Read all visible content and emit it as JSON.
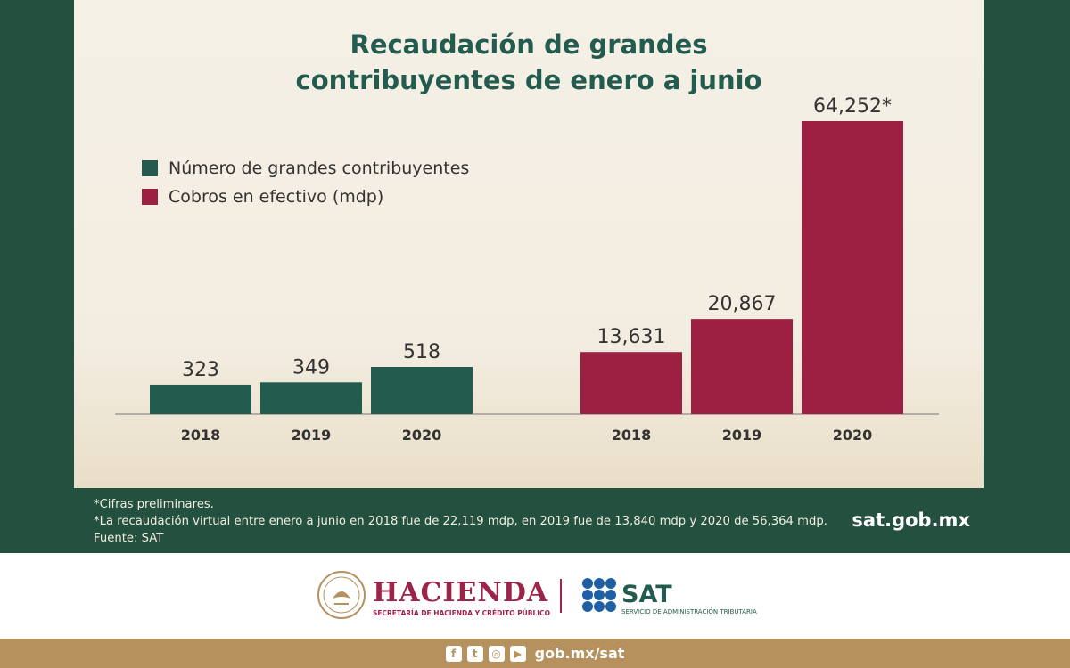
{
  "chart_data": [
    {
      "type": "bar",
      "title": "Recaudación de grandes contribuyentes de enero a junio",
      "series_name": "Número de grandes contribuyentes",
      "categories": [
        "2018",
        "2019",
        "2020"
      ],
      "values": [
        323,
        349,
        518
      ],
      "value_labels": [
        "323",
        "349",
        "518"
      ],
      "color": "#235b4e"
    },
    {
      "type": "bar",
      "series_name": "Cobros en efectivo (mdp)",
      "categories": [
        "2018",
        "2019",
        "2020"
      ],
      "values": [
        13631,
        20867,
        64252
      ],
      "value_labels": [
        "13,631",
        "20,867",
        "64,252*"
      ],
      "color": "#9d2042"
    }
  ],
  "title_lines": [
    "Recaudación de grandes",
    "contribuyentes de enero a junio"
  ],
  "legend": [
    {
      "label": "Número de grandes contribuyentes",
      "color": "#235b4e"
    },
    {
      "label": "Cobros en efectivo (mdp)",
      "color": "#9d2042"
    }
  ],
  "notes": [
    "*Cifras preliminares.",
    "*La recaudación virtual entre enero a junio en 2018 fue de 22,119 mdp, en 2019 fue de 13,840 mdp y 2020 de 56,364 mdp.",
    "Fuente: SAT"
  ],
  "site": "sat.gob.mx",
  "logos": {
    "hacienda": "HACIENDA",
    "hacienda_sub": "SECRETARÍA DE HACIENDA Y CRÉDITO PÚBLICO",
    "sat": "SAT",
    "sat_sub": "SERVICIO DE ADMINISTRACIÓN TRIBUTARIA"
  },
  "footer": {
    "url": "gob.mx/sat"
  },
  "colors": {
    "green": "#235b4e",
    "maroon": "#9d2042",
    "gold": "#b5915e",
    "cream": "#f5f0e6"
  }
}
